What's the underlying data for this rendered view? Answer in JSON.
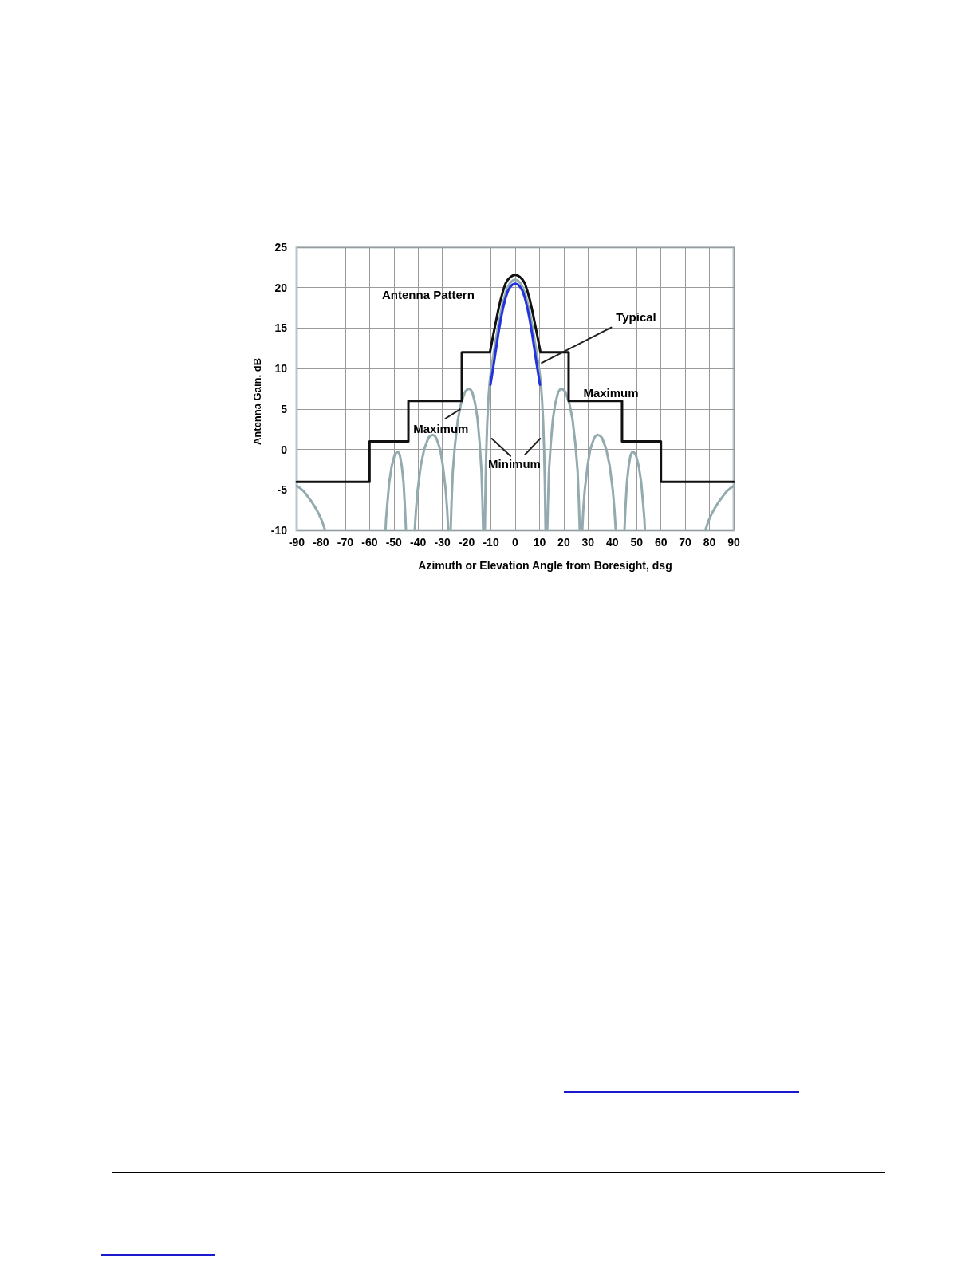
{
  "chart_data": {
    "type": "line",
    "title": "Antenna Pattern",
    "xlabel": "Azimuth or Elevation Angle from Boresight, dsg",
    "ylabel": "Antenna Gain, dB",
    "xlim": [
      -90,
      90
    ],
    "xticks": [
      -90,
      -80,
      -70,
      -60,
      -50,
      -40,
      -30,
      -20,
      -10,
      0,
      10,
      20,
      30,
      40,
      50,
      60,
      70,
      80,
      90
    ],
    "ylim": [
      -10,
      25
    ],
    "yticks": [
      -10,
      -5,
      0,
      5,
      10,
      15,
      20,
      25
    ],
    "grid": true,
    "marker": "none",
    "line_style": "solid",
    "series": [
      {
        "color": "#93aaae",
        "x": [
          -90,
          -88.5,
          -87,
          -85.5,
          -84,
          -82.5,
          -81,
          -79.5,
          -78.3,
          -65.8,
          -53.4,
          -53.2,
          -52.8,
          -51.9,
          -50.9,
          -49.7,
          -49,
          -48.4,
          -48,
          -47.5,
          -46.7,
          -46,
          -45.4,
          -45.2,
          -45,
          -43.2,
          -41.4,
          -40.9,
          -40.2,
          -38.9,
          -37.5,
          -35.8,
          -34.9,
          -34,
          -33.2,
          -32.5,
          -30.9,
          -29.8,
          -28.6,
          -28,
          -27.6,
          -27.1,
          -26.6,
          -26.2,
          -25.7,
          -24.8,
          -23.6,
          -22.3,
          -20.7,
          -19.8,
          -19,
          -18.4,
          -17.7,
          -16.5,
          -15.5,
          -14.6,
          -13.9,
          -13.5,
          -13.2,
          -12.85,
          -12.5,
          -12.2,
          -11.9,
          -11.5,
          -11,
          -10.5,
          -10,
          -9,
          -8,
          -7,
          -6,
          -5,
          -4,
          -3,
          -2,
          -1,
          0,
          1,
          2,
          3,
          4,
          5,
          6,
          7,
          8,
          9,
          10,
          10.5,
          11,
          11.5,
          11.9,
          12.2,
          12.5,
          12.85,
          13.2,
          13.5,
          13.9,
          14.6,
          15.5,
          16.5,
          17.7,
          18.4,
          19,
          19.8,
          20.7,
          22.3,
          23.6,
          24.8,
          25.7,
          26.2,
          26.6,
          27.1,
          27.6,
          28,
          28.6,
          29.8,
          30.9,
          32.5,
          33.2,
          34,
          34.9,
          35.8,
          37.5,
          38.9,
          40.2,
          40.9,
          41.4,
          43.2,
          45,
          45.2,
          45.4,
          46,
          46.7,
          47.5,
          48,
          48.4,
          49,
          49.7,
          50.9,
          51.9,
          52.8,
          53.2,
          53.4,
          65.8,
          78.3,
          79.5,
          81,
          82.5,
          84,
          85.5,
          87,
          88.5,
          90
        ],
        "values": [
          -4.5,
          -4.8,
          -5.2,
          -5.8,
          -6.4,
          -7.1,
          -7.9,
          -8.9,
          -10,
          null,
          -10,
          -8.6,
          -7.2,
          -4.1,
          -2.1,
          -0.7,
          -0.4,
          -0.3,
          -0.4,
          -0.7,
          -2.1,
          -4.1,
          -7.2,
          -8.6,
          -10,
          null,
          -10,
          -7.6,
          -5.1,
          -2,
          0,
          1.4,
          1.7,
          1.8,
          1.7,
          1.4,
          0,
          -2,
          -5.1,
          -7.6,
          -10,
          null,
          -10,
          -6.4,
          -2.7,
          0.6,
          3.7,
          5.7,
          7.1,
          7.4,
          7.5,
          7.4,
          7.1,
          5.7,
          3.7,
          0.6,
          -2.7,
          -6.4,
          -10,
          null,
          -10,
          -4,
          0,
          3.5,
          6.4,
          8.4,
          9.6,
          11.6,
          13.5,
          15.3,
          16.9,
          18.2,
          19.3,
          20.1,
          20.6,
          20.9,
          21,
          20.9,
          20.6,
          20.1,
          19.3,
          18.2,
          16.9,
          15.3,
          13.5,
          11.6,
          9.6,
          8.4,
          6.4,
          3.5,
          0,
          -4,
          -10,
          null,
          -10,
          -6.4,
          -2.7,
          0.6,
          3.7,
          5.7,
          7.1,
          7.4,
          7.5,
          7.4,
          7.1,
          5.7,
          3.7,
          0.6,
          -2.7,
          -6.4,
          -10,
          null,
          -10,
          -7.6,
          -5.1,
          -2,
          0,
          1.4,
          1.7,
          1.8,
          1.7,
          1.4,
          0,
          -2,
          -5.1,
          -7.6,
          -10,
          null,
          -10,
          -8.6,
          -7.2,
          -4.1,
          -2.1,
          -0.7,
          -0.4,
          -0.3,
          -0.4,
          -0.7,
          -2.1,
          -4.1,
          -7.2,
          -8.6,
          -10,
          null,
          -10,
          -8.9,
          -7.9,
          -7.1,
          -6.4,
          -5.8,
          -5.2,
          -4.8,
          -4.5
        ]
      },
      {
        "color": "#2233dd",
        "x": [
          -10.2,
          -9,
          -8,
          -7,
          -6,
          -5,
          -4,
          -3,
          -2,
          -1,
          0,
          1,
          2,
          3,
          4,
          5,
          6,
          7,
          8,
          9,
          10.2
        ],
        "values": [
          8,
          10.2,
          12.2,
          14.2,
          16,
          17.5,
          18.7,
          19.6,
          20.1,
          20.4,
          20.5,
          20.4,
          20.1,
          19.6,
          18.7,
          17.5,
          16,
          14.2,
          12.2,
          10.2,
          8
        ]
      },
      {
        "color": "#111111",
        "x": [
          -90,
          -60,
          -60,
          -44,
          -44,
          -22,
          -22,
          -10.4,
          -9,
          -8,
          -7,
          -6,
          -5,
          -4,
          -3,
          -2,
          -1,
          0,
          1,
          2,
          3,
          4,
          5,
          6,
          7,
          8,
          9,
          10.4,
          22,
          22,
          44,
          44,
          60,
          60,
          90
        ],
        "values": [
          -4,
          -4,
          1,
          1,
          6,
          6,
          12,
          12,
          14.2,
          15.7,
          17.2,
          18.5,
          19.6,
          20.5,
          21,
          21.3,
          21.5,
          21.6,
          21.5,
          21.3,
          21,
          20.5,
          19.6,
          18.5,
          17.2,
          15.7,
          14.2,
          12,
          12,
          6,
          6,
          1,
          1,
          -4,
          -4
        ]
      }
    ],
    "annotations": [
      {
        "text": "Typical",
        "x": 10.9,
        "y": 10.7
      },
      "Maximum",
      "Maximum",
      "Minimum"
    ]
  }
}
